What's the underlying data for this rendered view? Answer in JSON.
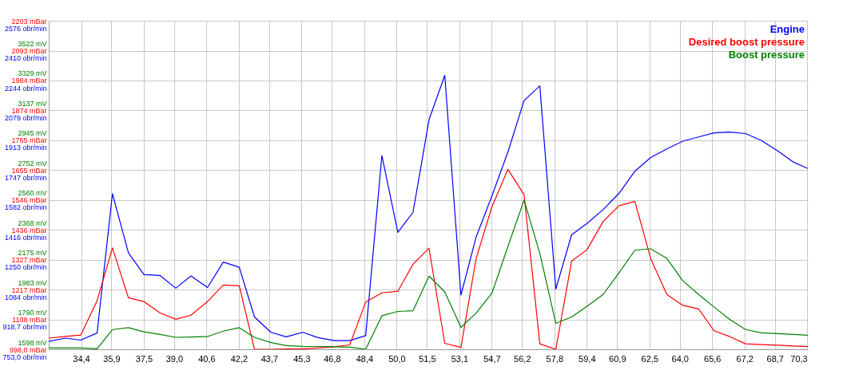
{
  "chart_data": {
    "type": "line",
    "legend": "top right",
    "grid": true,
    "x": [
      32.8,
      33.62,
      34.38,
      35.19,
      35.95,
      36.74,
      37.51,
      38.29,
      39.08,
      39.83,
      40.65,
      41.43,
      42.22,
      42.97,
      43.79,
      44.54,
      45.36,
      46.11,
      46.92,
      47.68,
      48.47,
      49.27,
      50.06,
      50.81,
      51.6,
      52.38,
      53.18,
      53.93,
      54.71,
      55.5,
      56.3,
      57.08,
      57.87,
      58.65,
      59.42,
      60.21,
      61.0,
      61.78,
      62.56,
      63.36,
      64.15,
      64.93,
      65.69,
      66.45,
      67.25,
      68.04,
      68.84,
      69.63,
      70.33
    ],
    "xlim": [
      32.8,
      70.33
    ],
    "xticks": [
      {
        "value": 34.4,
        "label": "34,4"
      },
      {
        "value": 35.9,
        "label": "35,9"
      },
      {
        "value": 37.5,
        "label": "37,5"
      },
      {
        "value": 39.0,
        "label": "39,0"
      },
      {
        "value": 40.6,
        "label": "40,6"
      },
      {
        "value": 42.2,
        "label": "42,2"
      },
      {
        "value": 43.7,
        "label": "43,7"
      },
      {
        "value": 45.3,
        "label": "45,3"
      },
      {
        "value": 46.8,
        "label": "46,8"
      },
      {
        "value": 48.4,
        "label": "48,4"
      },
      {
        "value": 50.0,
        "label": "50,0"
      },
      {
        "value": 51.5,
        "label": "51,5"
      },
      {
        "value": 53.1,
        "label": "53,1"
      },
      {
        "value": 54.7,
        "label": "54,7"
      },
      {
        "value": 56.2,
        "label": "56,2"
      },
      {
        "value": 57.8,
        "label": "57,8"
      },
      {
        "value": 59.4,
        "label": "59,4"
      },
      {
        "value": 60.9,
        "label": "60,9"
      },
      {
        "value": 62.5,
        "label": "62,5"
      },
      {
        "value": 64.0,
        "label": "64,0"
      },
      {
        "value": 65.6,
        "label": "65,6"
      },
      {
        "value": 67.2,
        "label": "67,2"
      },
      {
        "value": 68.7,
        "label": "68,7"
      },
      {
        "value": 70.3,
        "label": "70,3"
      }
    ],
    "ylim": [
      753,
      2576
    ],
    "yticks": [
      {
        "value": 753,
        "label": "753,0 obr/min"
      },
      {
        "value": 918.7,
        "label": "918,7 obr/min"
      },
      {
        "value": 1084,
        "label": "1084 obr/min"
      },
      {
        "value": 1250,
        "label": "1250 obr/min"
      },
      {
        "value": 1416,
        "label": "1416 obr/min"
      },
      {
        "value": 1582,
        "label": "1582 obr/min"
      },
      {
        "value": 1747,
        "label": "1747 obr/min"
      },
      {
        "value": 1913,
        "label": "1913 obr/min"
      },
      {
        "value": 2079,
        "label": "2079 obr/min"
      },
      {
        "value": 2244,
        "label": "2244 obr/min"
      },
      {
        "value": 2410,
        "label": "2410 obr/min"
      },
      {
        "value": 2576,
        "label": "2576 obr/min"
      }
    ],
    "y2lim": [
      998,
      2203
    ],
    "y2ticks": [
      {
        "value": 998,
        "label": "998,0 mBar"
      },
      {
        "value": 1108,
        "label": "1108 mBar"
      },
      {
        "value": 1217,
        "label": "1217 mBar"
      },
      {
        "value": 1327,
        "label": "1327 mBar"
      },
      {
        "value": 1436,
        "label": "1436 mBar"
      },
      {
        "value": 1546,
        "label": "1546 mBar"
      },
      {
        "value": 1655,
        "label": "1655 mBar"
      },
      {
        "value": 1765,
        "label": "1765 mBar"
      },
      {
        "value": 1874,
        "label": "1874 mBar"
      },
      {
        "value": 1984,
        "label": "1984 mBar"
      },
      {
        "value": 2093,
        "label": "2093 mBar"
      },
      {
        "value": 2203,
        "label": "2203 mBar"
      }
    ],
    "y3lim": [
      1598,
      3714
    ],
    "y3ticks": [
      {
        "value": 1598,
        "label": "1598 mV"
      },
      {
        "value": 1790,
        "label": "1790 mV"
      },
      {
        "value": 1983,
        "label": "1983 mV"
      },
      {
        "value": 2175,
        "label": "2175 mV"
      },
      {
        "value": 2368,
        "label": "2368 mV"
      },
      {
        "value": 2560,
        "label": "2560 mV"
      },
      {
        "value": 2752,
        "label": "2752 mV"
      },
      {
        "value": 2945,
        "label": "2945 mV"
      },
      {
        "value": 3137,
        "label": "3137 mV"
      },
      {
        "value": 3329,
        "label": "3329 mV"
      },
      {
        "value": 3522,
        "label": "3522 mV"
      }
    ],
    "series": [
      {
        "name": "Engine",
        "color": "#0000ff",
        "axis": "y",
        "values": [
          797,
          815,
          804,
          843,
          1616,
          1288,
          1167,
          1163,
          1092,
          1160,
          1096,
          1237,
          1208,
          932,
          847,
          822,
          847,
          818,
          801,
          801,
          829,
          1828,
          1402,
          1513,
          2026,
          2273,
          1054,
          1376,
          1604,
          1847,
          2133,
          2215,
          1087,
          1388,
          1452,
          1528,
          1619,
          1741,
          1817,
          1865,
          1908,
          1931,
          1954,
          1958,
          1950,
          1911,
          1854,
          1791,
          1756
        ]
      },
      {
        "name": "Desired boost pressure",
        "color": "#ff0000",
        "axis": "y2",
        "values": [
          1039,
          1045,
          1050,
          1176,
          1370,
          1187,
          1173,
          1132,
          1108,
          1123,
          1173,
          1234,
          1231,
          998,
          998,
          999,
          1000,
          1003,
          1007,
          1014,
          1171,
          1205,
          1211,
          1310,
          1369,
          1020,
          1005,
          1331,
          1520,
          1658,
          1565,
          1018,
          998,
          1321,
          1364,
          1467,
          1525,
          1540,
          1331,
          1199,
          1159,
          1146,
          1066,
          1045,
          1018,
          1015,
          1013,
          1010,
          1008
        ]
      },
      {
        "name": "Boost pressure",
        "color": "#008000",
        "axis": "y3",
        "values": [
          1606,
          1606,
          1606,
          1601,
          1725,
          1737,
          1710,
          1694,
          1675,
          1677,
          1680,
          1715,
          1737,
          1675,
          1641,
          1622,
          1617,
          1616,
          1614,
          1611,
          1598,
          1814,
          1842,
          1846,
          2069,
          1968,
          1739,
          1831,
          1959,
          2259,
          2559,
          2215,
          1765,
          1806,
          1875,
          1951,
          2092,
          2236,
          2245,
          2183,
          2039,
          1951,
          1871,
          1792,
          1725,
          1704,
          1699,
          1694,
          1689
        ]
      }
    ]
  }
}
